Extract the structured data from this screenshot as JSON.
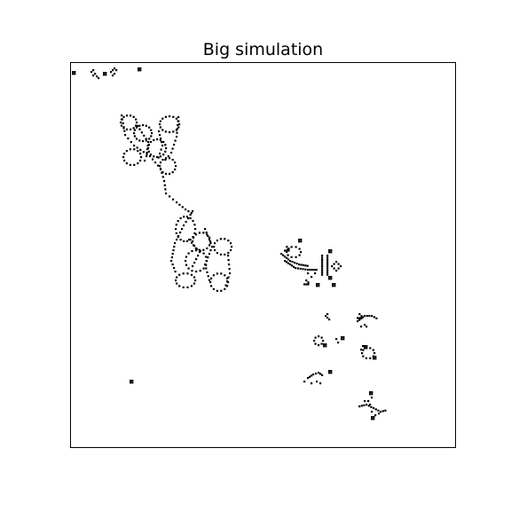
{
  "figure": {
    "title": "Big simulation"
  },
  "colors": {
    "background": "#ffffff",
    "live_cell": "#000000",
    "frame": "#000000"
  }
}
